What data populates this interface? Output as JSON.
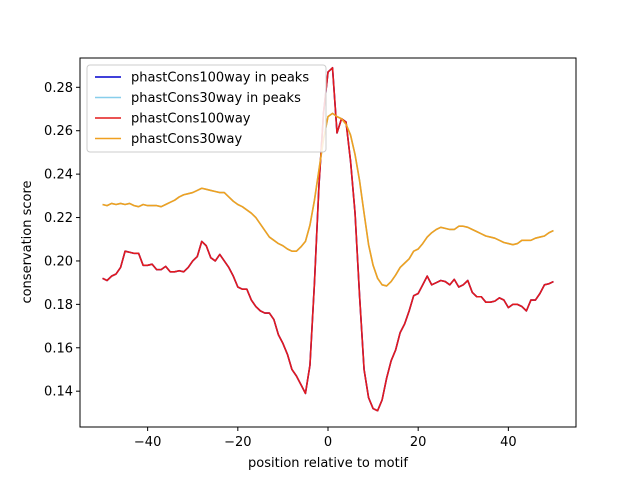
{
  "chart_data": {
    "type": "line",
    "title": "",
    "xlabel": "position relative to motif",
    "ylabel": "conservation score",
    "xlim": [
      -55,
      55
    ],
    "ylim": [
      0.1235,
      0.2935
    ],
    "xticks": [
      -40,
      -20,
      0,
      20,
      40
    ],
    "yticks": [
      0.14,
      0.16,
      0.18,
      0.2,
      0.22,
      0.24,
      0.26,
      0.28
    ],
    "ytick_labels": [
      "0.14",
      "0.16",
      "0.18",
      "0.20",
      "0.22",
      "0.24",
      "0.26",
      "0.28"
    ],
    "legend_position": "upper-left",
    "grid": false,
    "x": [
      -50,
      -49,
      -48,
      -47,
      -46,
      -45,
      -44,
      -43,
      -42,
      -41,
      -40,
      -39,
      -38,
      -37,
      -36,
      -35,
      -34,
      -33,
      -32,
      -31,
      -30,
      -29,
      -28,
      -27,
      -26,
      -25,
      -24,
      -23,
      -22,
      -21,
      -20,
      -19,
      -18,
      -17,
      -16,
      -15,
      -14,
      -13,
      -12,
      -11,
      -10,
      -9,
      -8,
      -7,
      -6,
      -5,
      -4,
      -3,
      -2,
      -1,
      0,
      1,
      2,
      3,
      4,
      5,
      6,
      7,
      8,
      9,
      10,
      11,
      12,
      13,
      14,
      15,
      16,
      17,
      18,
      19,
      20,
      21,
      22,
      23,
      24,
      25,
      26,
      27,
      28,
      29,
      30,
      31,
      32,
      33,
      34,
      35,
      36,
      37,
      38,
      39,
      40,
      41,
      42,
      43,
      44,
      45,
      46,
      47,
      48,
      49,
      50
    ],
    "series": [
      {
        "name": "phastCons100way in peaks",
        "color": "#0000cd",
        "values": [
          0.192,
          0.191,
          0.193,
          0.194,
          0.197,
          0.2045,
          0.204,
          0.2035,
          0.2035,
          0.198,
          0.198,
          0.1985,
          0.196,
          0.196,
          0.1975,
          0.195,
          0.195,
          0.1955,
          0.195,
          0.197,
          0.2,
          0.202,
          0.209,
          0.207,
          0.2015,
          0.2,
          0.203,
          0.2,
          0.197,
          0.193,
          0.188,
          0.187,
          0.187,
          0.182,
          0.179,
          0.177,
          0.176,
          0.176,
          0.173,
          0.166,
          0.162,
          0.157,
          0.15,
          0.147,
          0.143,
          0.139,
          0.152,
          0.19,
          0.235,
          0.268,
          0.287,
          0.289,
          0.259,
          0.2655,
          0.264,
          0.246,
          0.222,
          0.184,
          0.15,
          0.137,
          0.132,
          0.131,
          0.136,
          0.146,
          0.154,
          0.159,
          0.167,
          0.171,
          0.177,
          0.184,
          0.185,
          0.189,
          0.193,
          0.189,
          0.19,
          0.191,
          0.1905,
          0.189,
          0.1915,
          0.188,
          0.189,
          0.191,
          0.1855,
          0.1835,
          0.1835,
          0.181,
          0.181,
          0.1815,
          0.183,
          0.182,
          0.1785,
          0.18,
          0.18,
          0.179,
          0.177,
          0.182,
          0.182,
          0.185,
          0.189,
          0.1895,
          0.1905
        ]
      },
      {
        "name": "phastCons30way in peaks",
        "color": "#87ceeb",
        "values": [
          0.226,
          0.2255,
          0.2265,
          0.226,
          0.2265,
          0.226,
          0.2265,
          0.2255,
          0.225,
          0.226,
          0.2255,
          0.2255,
          0.2255,
          0.225,
          0.226,
          0.227,
          0.228,
          0.2295,
          0.2305,
          0.231,
          0.2315,
          0.2325,
          0.2335,
          0.233,
          0.2325,
          0.232,
          0.2315,
          0.2315,
          0.2295,
          0.2275,
          0.226,
          0.225,
          0.2235,
          0.222,
          0.22,
          0.217,
          0.214,
          0.211,
          0.2095,
          0.208,
          0.207,
          0.2055,
          0.2045,
          0.2045,
          0.2065,
          0.209,
          0.2165,
          0.228,
          0.242,
          0.256,
          0.2665,
          0.268,
          0.2665,
          0.2655,
          0.263,
          0.258,
          0.249,
          0.237,
          0.222,
          0.2075,
          0.198,
          0.192,
          0.189,
          0.1885,
          0.1905,
          0.1935,
          0.197,
          0.199,
          0.201,
          0.2045,
          0.2055,
          0.208,
          0.211,
          0.213,
          0.2145,
          0.2155,
          0.215,
          0.2145,
          0.2145,
          0.216,
          0.216,
          0.2155,
          0.2145,
          0.2135,
          0.2125,
          0.2115,
          0.211,
          0.2105,
          0.2095,
          0.2085,
          0.208,
          0.2075,
          0.208,
          0.2095,
          0.2095,
          0.2095,
          0.2105,
          0.211,
          0.2115,
          0.213,
          0.214
        ]
      },
      {
        "name": "phastCons100way",
        "color": "#e31a1c",
        "values": [
          0.192,
          0.191,
          0.193,
          0.194,
          0.197,
          0.2045,
          0.204,
          0.2035,
          0.2035,
          0.198,
          0.198,
          0.1985,
          0.196,
          0.196,
          0.1975,
          0.195,
          0.195,
          0.1955,
          0.195,
          0.197,
          0.2,
          0.202,
          0.209,
          0.207,
          0.2015,
          0.2,
          0.203,
          0.2,
          0.197,
          0.193,
          0.188,
          0.187,
          0.187,
          0.182,
          0.179,
          0.177,
          0.176,
          0.176,
          0.173,
          0.166,
          0.162,
          0.157,
          0.15,
          0.147,
          0.143,
          0.139,
          0.152,
          0.19,
          0.235,
          0.268,
          0.287,
          0.289,
          0.259,
          0.2655,
          0.264,
          0.246,
          0.222,
          0.184,
          0.15,
          0.137,
          0.132,
          0.131,
          0.136,
          0.146,
          0.154,
          0.159,
          0.167,
          0.171,
          0.177,
          0.184,
          0.185,
          0.189,
          0.193,
          0.189,
          0.19,
          0.191,
          0.1905,
          0.189,
          0.1915,
          0.188,
          0.189,
          0.191,
          0.1855,
          0.1835,
          0.1835,
          0.181,
          0.181,
          0.1815,
          0.183,
          0.182,
          0.1785,
          0.18,
          0.18,
          0.179,
          0.177,
          0.182,
          0.182,
          0.185,
          0.189,
          0.1895,
          0.1905
        ]
      },
      {
        "name": "phastCons30way",
        "color": "#f0a020",
        "values": [
          0.226,
          0.2255,
          0.2265,
          0.226,
          0.2265,
          0.226,
          0.2265,
          0.2255,
          0.225,
          0.226,
          0.2255,
          0.2255,
          0.2255,
          0.225,
          0.226,
          0.227,
          0.228,
          0.2295,
          0.2305,
          0.231,
          0.2315,
          0.2325,
          0.2335,
          0.233,
          0.2325,
          0.232,
          0.2315,
          0.2315,
          0.2295,
          0.2275,
          0.226,
          0.225,
          0.2235,
          0.222,
          0.22,
          0.217,
          0.214,
          0.211,
          0.2095,
          0.208,
          0.207,
          0.2055,
          0.2045,
          0.2045,
          0.2065,
          0.209,
          0.2165,
          0.228,
          0.242,
          0.256,
          0.2665,
          0.268,
          0.2665,
          0.2655,
          0.263,
          0.258,
          0.249,
          0.237,
          0.222,
          0.2075,
          0.198,
          0.192,
          0.189,
          0.1885,
          0.1905,
          0.1935,
          0.197,
          0.199,
          0.201,
          0.2045,
          0.2055,
          0.208,
          0.211,
          0.213,
          0.2145,
          0.2155,
          0.215,
          0.2145,
          0.2145,
          0.216,
          0.216,
          0.2155,
          0.2145,
          0.2135,
          0.2125,
          0.2115,
          0.211,
          0.2105,
          0.2095,
          0.2085,
          0.208,
          0.2075,
          0.208,
          0.2095,
          0.2095,
          0.2095,
          0.2105,
          0.211,
          0.2115,
          0.213,
          0.214
        ]
      }
    ]
  }
}
